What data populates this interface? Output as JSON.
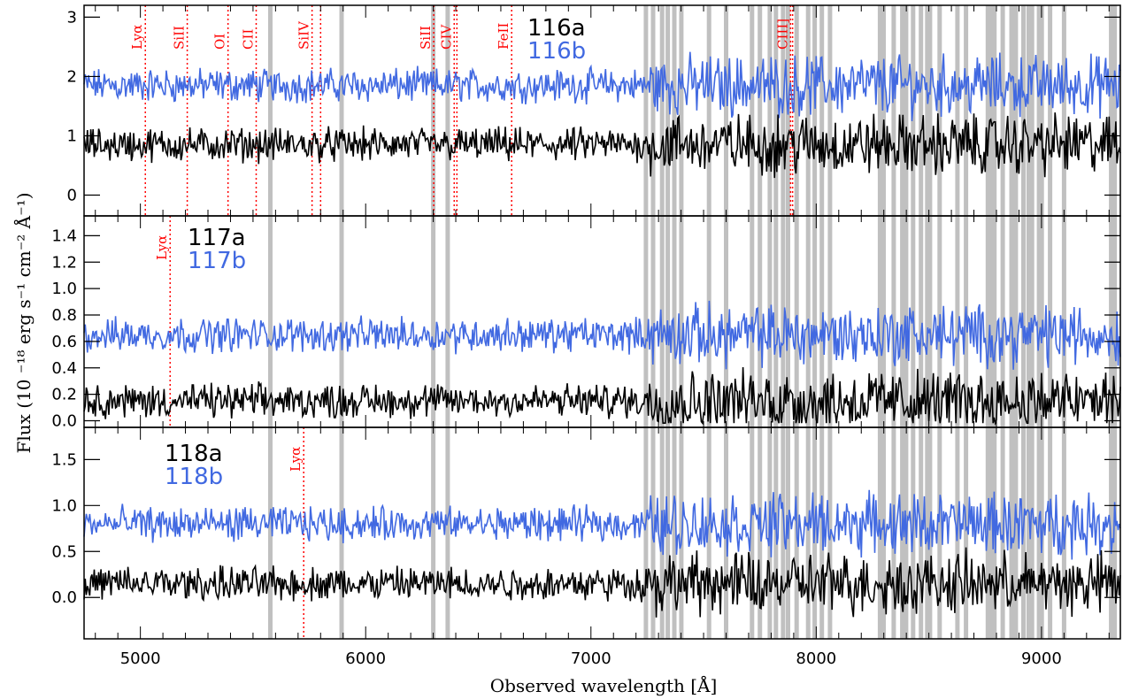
{
  "colors": {
    "a_spectrum": "#000000",
    "b_spectrum": "#4169e1",
    "line_marker": "#ff0000",
    "sky_band": "#c0c0c0"
  },
  "xlabel": "Observed wavelength [Å]",
  "ylabel": "Flux (10 ⁻¹⁸ erg s⁻¹ cm⁻² Å⁻¹)",
  "chart_data": {
    "type": "line",
    "xlabel": "Observed wavelength [Å]",
    "ylabel": "Flux (10 ⁻¹⁸ erg s⁻¹ cm⁻² Å⁻¹)",
    "xlim": [
      4750,
      9350
    ],
    "x_ticks": [
      5000,
      6000,
      7000,
      8000,
      9000
    ],
    "sky_bands": [
      5577,
      5893,
      6300,
      6364,
      7244,
      7276,
      7316,
      7341,
      7370,
      7401,
      7524,
      7600,
      7715,
      7750,
      7794,
      7821,
      7853,
      7875,
      7913,
      7964,
      7993,
      8025,
      8061,
      8283,
      8299,
      8344,
      8382,
      8399,
      8430,
      8465,
      8493,
      8505,
      8548,
      8627,
      8665,
      8762,
      8779,
      8791,
      8828,
      8867,
      8886,
      8920,
      8943,
      8958,
      8989,
      9001,
      9038,
      9100,
      9309,
      9325
    ],
    "panels": [
      {
        "labels": [
          "116a",
          "116b"
        ],
        "ylim": [
          -0.35,
          3.2
        ],
        "yticks": [
          0,
          1,
          2,
          3
        ],
        "a_baseline": 0.85,
        "b_baseline": 1.85,
        "lines": [
          {
            "label": "Lyα",
            "wavelength": 5022
          },
          {
            "label": "SiII",
            "wavelength": 5208
          },
          {
            "label": "OI",
            "wavelength": 5389
          },
          {
            "label": "CII",
            "wavelength": 5514
          },
          {
            "label": "SiIV",
            "wavelength": 5762
          },
          {
            "label": "",
            "wavelength": 5800
          },
          {
            "label": "SiII",
            "wavelength": 6302
          },
          {
            "label": "CIV",
            "wavelength": 6393
          },
          {
            "label": "",
            "wavelength": 6405
          },
          {
            "label": "FeII",
            "wavelength": 6648
          },
          {
            "label": "CIII]",
            "wavelength": 7886
          },
          {
            "label": "",
            "wavelength": 7895
          }
        ]
      },
      {
        "labels": [
          "117a",
          "117b"
        ],
        "ylim": [
          -0.05,
          1.55
        ],
        "yticks": [
          0.0,
          0.2,
          0.4,
          0.6,
          0.8,
          1.0,
          1.2,
          1.4
        ],
        "a_baseline": 0.15,
        "b_baseline": 0.65,
        "lines": [
          {
            "label": "Lyα",
            "wavelength": 5132
          }
        ]
      },
      {
        "labels": [
          "118a",
          "118b"
        ],
        "ylim": [
          -0.45,
          1.85
        ],
        "yticks": [
          0.0,
          0.5,
          1.0,
          1.5
        ],
        "a_baseline": 0.15,
        "b_baseline": 0.8,
        "lines": [
          {
            "label": "Lyα",
            "wavelength": 5725
          }
        ]
      }
    ]
  }
}
